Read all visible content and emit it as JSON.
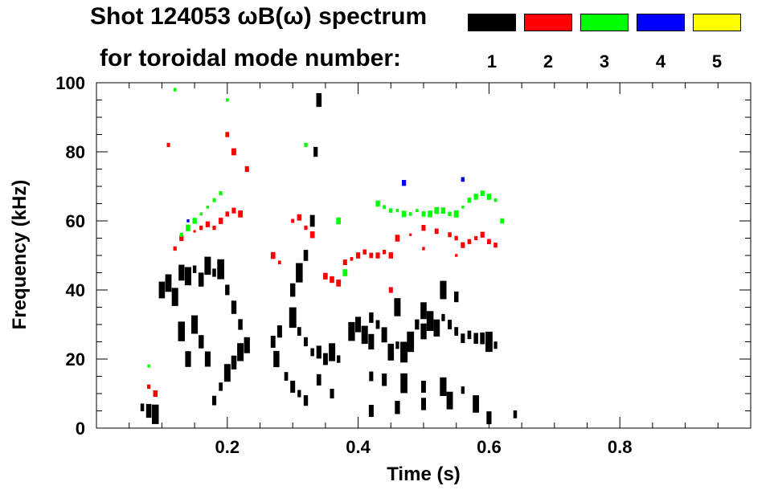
{
  "header": {
    "title_line1": "Shot 124053 ωB(ω) spectrum",
    "title_line2": "for toroidal mode number:"
  },
  "legend": [
    {
      "mode": "1",
      "color": "#000000"
    },
    {
      "mode": "2",
      "color": "#ff0000"
    },
    {
      "mode": "3",
      "color": "#00ff00"
    },
    {
      "mode": "4",
      "color": "#0000ff"
    },
    {
      "mode": "5",
      "color": "#ffff00"
    }
  ],
  "chart_data": {
    "type": "scatter",
    "title": "Shot 124053 ωB(ω) spectrum",
    "subtitle": "for toroidal mode number:",
    "xlabel": "Time (s)",
    "ylabel": "Frequency (kHz)",
    "xlim": [
      0.0,
      1.0
    ],
    "ylim": [
      0,
      100
    ],
    "xticks": [
      0.2,
      0.4,
      0.6,
      0.8
    ],
    "xtick_labels": [
      "0.2",
      "0.4",
      "0.6",
      "0.8"
    ],
    "yticks": [
      0,
      20,
      40,
      60,
      80,
      100
    ],
    "ytick_labels": [
      "0",
      "20",
      "40",
      "60",
      "80",
      "100"
    ],
    "grid": false,
    "legend_position": "top-right",
    "series": [
      {
        "name": "1",
        "color": "#000000",
        "points": [
          [
            0.07,
            6
          ],
          [
            0.08,
            5
          ],
          [
            0.09,
            4
          ],
          [
            0.1,
            40
          ],
          [
            0.11,
            42
          ],
          [
            0.12,
            38
          ],
          [
            0.13,
            45
          ],
          [
            0.14,
            44
          ],
          [
            0.15,
            46
          ],
          [
            0.16,
            43
          ],
          [
            0.17,
            47
          ],
          [
            0.18,
            45
          ],
          [
            0.19,
            46
          ],
          [
            0.2,
            40
          ],
          [
            0.21,
            35
          ],
          [
            0.22,
            30
          ],
          [
            0.18,
            8
          ],
          [
            0.19,
            12
          ],
          [
            0.2,
            16
          ],
          [
            0.21,
            19
          ],
          [
            0.22,
            22
          ],
          [
            0.23,
            24
          ],
          [
            0.15,
            30
          ],
          [
            0.16,
            25
          ],
          [
            0.17,
            20
          ],
          [
            0.13,
            28
          ],
          [
            0.14,
            20
          ],
          [
            0.27,
            25
          ],
          [
            0.275,
            20
          ],
          [
            0.28,
            28
          ],
          [
            0.29,
            15
          ],
          [
            0.3,
            32
          ],
          [
            0.31,
            28
          ],
          [
            0.32,
            25
          ],
          [
            0.33,
            22
          ],
          [
            0.34,
            22
          ],
          [
            0.35,
            20
          ],
          [
            0.36,
            22
          ],
          [
            0.37,
            20
          ],
          [
            0.3,
            40
          ],
          [
            0.31,
            45
          ],
          [
            0.32,
            50
          ],
          [
            0.33,
            60
          ],
          [
            0.335,
            80
          ],
          [
            0.34,
            95
          ],
          [
            0.3,
            12
          ],
          [
            0.31,
            10
          ],
          [
            0.32,
            8
          ],
          [
            0.34,
            14
          ],
          [
            0.36,
            10
          ],
          [
            0.39,
            28
          ],
          [
            0.4,
            30
          ],
          [
            0.41,
            27
          ],
          [
            0.42,
            25
          ],
          [
            0.43,
            30
          ],
          [
            0.44,
            27
          ],
          [
            0.45,
            22
          ],
          [
            0.46,
            24
          ],
          [
            0.47,
            22
          ],
          [
            0.48,
            25
          ],
          [
            0.49,
            30
          ],
          [
            0.5,
            28
          ],
          [
            0.51,
            31
          ],
          [
            0.52,
            29
          ],
          [
            0.53,
            32
          ],
          [
            0.54,
            30
          ],
          [
            0.55,
            28
          ],
          [
            0.56,
            26
          ],
          [
            0.57,
            27
          ],
          [
            0.58,
            26
          ],
          [
            0.59,
            26
          ],
          [
            0.6,
            25
          ],
          [
            0.61,
            24
          ],
          [
            0.42,
            32
          ],
          [
            0.46,
            35
          ],
          [
            0.5,
            34
          ],
          [
            0.53,
            40
          ],
          [
            0.55,
            38
          ],
          [
            0.42,
            15
          ],
          [
            0.44,
            14
          ],
          [
            0.47,
            13
          ],
          [
            0.5,
            12
          ],
          [
            0.53,
            12
          ],
          [
            0.56,
            11
          ],
          [
            0.42,
            5
          ],
          [
            0.46,
            6
          ],
          [
            0.5,
            7
          ],
          [
            0.54,
            8
          ],
          [
            0.58,
            7
          ],
          [
            0.6,
            3
          ],
          [
            0.64,
            4
          ]
        ]
      },
      {
        "name": "2",
        "color": "#ff0000",
        "points": [
          [
            0.08,
            12
          ],
          [
            0.09,
            10
          ],
          [
            0.11,
            82
          ],
          [
            0.12,
            52
          ],
          [
            0.13,
            55
          ],
          [
            0.14,
            58
          ],
          [
            0.15,
            57
          ],
          [
            0.16,
            58
          ],
          [
            0.17,
            59
          ],
          [
            0.18,
            58
          ],
          [
            0.19,
            60
          ],
          [
            0.2,
            62
          ],
          [
            0.21,
            63
          ],
          [
            0.22,
            62
          ],
          [
            0.2,
            85
          ],
          [
            0.21,
            80
          ],
          [
            0.23,
            75
          ],
          [
            0.27,
            50
          ],
          [
            0.28,
            48
          ],
          [
            0.3,
            60
          ],
          [
            0.31,
            61
          ],
          [
            0.32,
            58
          ],
          [
            0.33,
            56
          ],
          [
            0.35,
            44
          ],
          [
            0.36,
            43
          ],
          [
            0.37,
            42
          ],
          [
            0.38,
            48
          ],
          [
            0.39,
            49
          ],
          [
            0.4,
            50
          ],
          [
            0.41,
            51
          ],
          [
            0.42,
            50
          ],
          [
            0.43,
            50
          ],
          [
            0.44,
            51
          ],
          [
            0.45,
            50
          ],
          [
            0.46,
            55
          ],
          [
            0.48,
            56
          ],
          [
            0.5,
            58
          ],
          [
            0.52,
            57
          ],
          [
            0.54,
            56
          ],
          [
            0.55,
            55
          ],
          [
            0.56,
            53
          ],
          [
            0.57,
            54
          ],
          [
            0.58,
            55
          ],
          [
            0.59,
            56
          ],
          [
            0.6,
            54
          ],
          [
            0.61,
            53
          ],
          [
            0.5,
            52
          ],
          [
            0.55,
            50
          ],
          [
            0.45,
            40
          ]
        ]
      },
      {
        "name": "3",
        "color": "#00ff00",
        "points": [
          [
            0.08,
            18
          ],
          [
            0.12,
            98
          ],
          [
            0.13,
            56
          ],
          [
            0.14,
            58
          ],
          [
            0.15,
            60
          ],
          [
            0.16,
            62
          ],
          [
            0.17,
            64
          ],
          [
            0.18,
            66
          ],
          [
            0.19,
            68
          ],
          [
            0.2,
            95
          ],
          [
            0.32,
            82
          ],
          [
            0.37,
            60
          ],
          [
            0.38,
            45
          ],
          [
            0.43,
            65
          ],
          [
            0.44,
            64
          ],
          [
            0.45,
            63
          ],
          [
            0.46,
            63
          ],
          [
            0.47,
            62
          ],
          [
            0.48,
            62
          ],
          [
            0.49,
            63
          ],
          [
            0.5,
            62
          ],
          [
            0.51,
            62
          ],
          [
            0.52,
            63
          ],
          [
            0.53,
            63
          ],
          [
            0.54,
            62
          ],
          [
            0.55,
            62
          ],
          [
            0.56,
            64
          ],
          [
            0.57,
            66
          ],
          [
            0.58,
            67
          ],
          [
            0.59,
            68
          ],
          [
            0.6,
            67
          ],
          [
            0.61,
            66
          ],
          [
            0.62,
            60
          ]
        ]
      },
      {
        "name": "4",
        "color": "#0000ff",
        "points": [
          [
            0.14,
            60
          ],
          [
            0.47,
            71
          ],
          [
            0.56,
            72
          ]
        ]
      },
      {
        "name": "5",
        "color": "#ffff00",
        "points": []
      }
    ]
  }
}
